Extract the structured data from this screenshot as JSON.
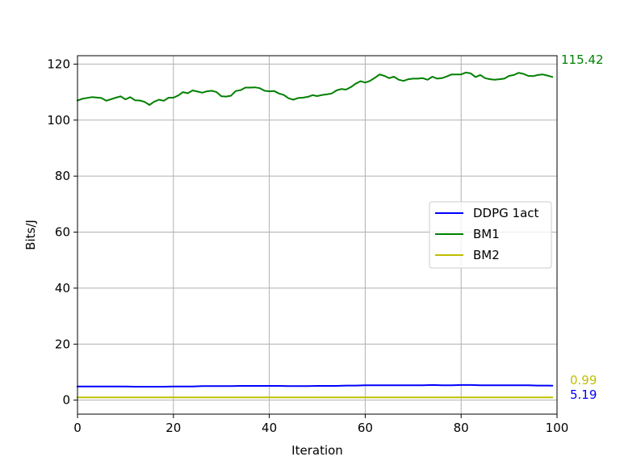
{
  "chart_data": {
    "type": "line",
    "xlabel": "Iteration",
    "ylabel": "Bits/J",
    "xlim": [
      0,
      100
    ],
    "ylim": [
      -5,
      123
    ],
    "xticks": [
      0,
      20,
      40,
      60,
      80,
      100
    ],
    "yticks": [
      0,
      20,
      40,
      60,
      80,
      100,
      120
    ],
    "grid": true,
    "legend_position": "center-right",
    "series": [
      {
        "name": "DDPG 1act",
        "color": "#0000ff",
        "x": [
          0,
          2,
          4,
          6,
          8,
          10,
          12,
          14,
          16,
          18,
          20,
          22,
          24,
          26,
          28,
          30,
          32,
          34,
          36,
          38,
          40,
          42,
          44,
          46,
          48,
          50,
          52,
          54,
          56,
          58,
          60,
          62,
          64,
          66,
          68,
          70,
          72,
          74,
          76,
          78,
          80,
          82,
          84,
          86,
          88,
          90,
          92,
          94,
          96,
          98,
          99
        ],
        "y": [
          4.9,
          4.9,
          4.9,
          4.9,
          4.9,
          4.9,
          4.8,
          4.8,
          4.8,
          4.8,
          4.9,
          4.9,
          4.9,
          5.0,
          5.0,
          5.0,
          5.0,
          5.1,
          5.1,
          5.1,
          5.1,
          5.1,
          5.0,
          5.0,
          5.0,
          5.1,
          5.1,
          5.1,
          5.2,
          5.2,
          5.3,
          5.3,
          5.3,
          5.3,
          5.3,
          5.3,
          5.3,
          5.4,
          5.3,
          5.3,
          5.4,
          5.4,
          5.3,
          5.3,
          5.3,
          5.3,
          5.3,
          5.3,
          5.2,
          5.2,
          5.19
        ]
      },
      {
        "name": "BM1",
        "color": "#008000",
        "x": [
          0,
          1,
          3,
          5,
          6,
          8,
          9,
          10,
          11,
          12,
          13,
          14,
          15,
          16,
          17,
          18,
          19,
          20,
          21,
          22,
          23,
          24,
          25,
          26,
          27,
          28,
          29,
          30,
          31,
          32,
          33,
          34,
          35,
          36,
          37,
          38,
          39,
          40,
          41,
          42,
          43,
          44,
          45,
          46,
          47,
          48,
          49,
          50,
          51,
          52,
          53,
          54,
          55,
          56,
          57,
          58,
          59,
          60,
          61,
          62,
          63,
          64,
          65,
          66,
          67,
          68,
          69,
          70,
          71,
          72,
          73,
          74,
          75,
          76,
          77,
          78,
          79,
          80,
          81,
          82,
          83,
          84,
          85,
          86,
          87,
          88,
          89,
          90,
          91,
          92,
          93,
          94,
          95,
          96,
          97,
          98,
          99
        ],
        "y": [
          107.0,
          107.6,
          108.2,
          107.9,
          106.9,
          108.0,
          108.5,
          107.4,
          108.2,
          107.1,
          107.0,
          106.5,
          105.4,
          106.6,
          107.3,
          106.9,
          108.0,
          108.0,
          108.8,
          110.0,
          109.6,
          110.6,
          110.2,
          109.8,
          110.3,
          110.5,
          110.0,
          108.5,
          108.4,
          108.7,
          110.4,
          110.7,
          111.6,
          111.6,
          111.7,
          111.4,
          110.5,
          110.3,
          110.4,
          109.5,
          109.0,
          107.8,
          107.3,
          107.9,
          108.0,
          108.3,
          108.9,
          108.6,
          109.0,
          109.2,
          109.5,
          110.6,
          111.1,
          110.9,
          111.8,
          113.0,
          113.9,
          113.4,
          114.0,
          115.1,
          116.3,
          115.8,
          115.0,
          115.5,
          114.4,
          114.0,
          114.6,
          114.8,
          114.8,
          115.0,
          114.4,
          115.5,
          114.8,
          115.0,
          115.6,
          116.3,
          116.3,
          116.3,
          117.0,
          116.7,
          115.4,
          116.1,
          115.0,
          114.6,
          114.4,
          114.6,
          114.8,
          115.8,
          116.1,
          116.9,
          116.5,
          115.8,
          115.7,
          116.1,
          116.3,
          115.9,
          115.42
        ]
      },
      {
        "name": "BM2",
        "color": "#bfbf00",
        "x": [
          0,
          10,
          20,
          30,
          40,
          50,
          60,
          70,
          80,
          90,
          99
        ],
        "y": [
          1.0,
          1.0,
          0.99,
          0.99,
          1.0,
          1.0,
          1.0,
          1.0,
          1.0,
          0.99,
          0.99
        ]
      }
    ],
    "end_labels": [
      {
        "text": "115.42",
        "color": "#008000",
        "value": 115.42
      },
      {
        "text": "0.99",
        "color": "#bfbf00",
        "value": 0.99
      },
      {
        "text": "5.19",
        "color": "#0000ff",
        "value": 5.19
      }
    ]
  }
}
